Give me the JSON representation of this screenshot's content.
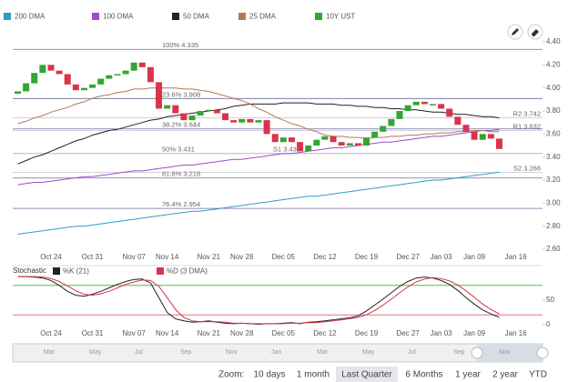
{
  "chart_data": [
    {
      "type": "candlestick",
      "categories": [
        null,
        null,
        null,
        null,
        "Oct 24",
        null,
        null,
        null,
        null,
        "Oct 31",
        null,
        null,
        null,
        null,
        "Nov 07",
        null,
        null,
        null,
        "Nov 14",
        null,
        null,
        null,
        null,
        "Nov 21",
        null,
        null,
        null,
        "Nov 28",
        null,
        null,
        null,
        null,
        "Dec 05",
        null,
        null,
        null,
        null,
        "Dec 12",
        null,
        null,
        null,
        null,
        "Dec 19",
        null,
        null,
        null,
        null,
        "Dec 27",
        null,
        null,
        null,
        "Jan 03",
        null,
        null,
        null,
        "Jan 09",
        null,
        null,
        null,
        null,
        "Jan 16"
      ],
      "candles": {
        "name": "10Y UST",
        "color": "#33a532",
        "down_color": "#d9344a",
        "open": [
          3.95,
          3.97,
          4.04,
          4.13,
          4.2,
          4.15,
          4.12,
          4.03,
          3.98,
          4.0,
          4.03,
          4.08,
          4.11,
          4.12,
          4.15,
          4.22,
          4.18,
          4.05,
          3.82,
          3.85,
          3.78,
          3.72,
          3.76,
          3.8,
          3.81,
          3.78,
          3.72,
          3.7,
          3.73,
          3.7,
          3.72,
          3.6,
          3.53,
          3.57,
          3.53,
          3.45,
          3.5,
          3.55,
          3.58,
          3.53,
          3.5,
          3.52,
          3.5,
          3.57,
          3.62,
          3.67,
          3.73,
          3.8,
          3.85,
          3.88,
          3.86,
          3.86,
          3.82,
          3.75,
          3.68,
          3.62,
          3.55,
          3.6,
          3.56,
          null,
          null
        ],
        "close": [
          3.97,
          4.04,
          4.13,
          4.2,
          4.15,
          4.12,
          4.03,
          3.98,
          4.0,
          4.03,
          4.08,
          4.11,
          4.12,
          4.15,
          4.22,
          4.18,
          4.05,
          3.82,
          3.85,
          3.78,
          3.72,
          3.76,
          3.8,
          3.81,
          3.78,
          3.72,
          3.7,
          3.73,
          3.7,
          3.72,
          3.6,
          3.53,
          3.57,
          3.53,
          3.45,
          3.5,
          3.55,
          3.58,
          3.53,
          3.5,
          3.52,
          3.5,
          3.57,
          3.62,
          3.67,
          3.73,
          3.8,
          3.85,
          3.88,
          3.86,
          3.86,
          3.82,
          3.75,
          3.68,
          3.62,
          3.55,
          3.6,
          3.56,
          3.47,
          null,
          null
        ]
      },
      "series": [
        {
          "name": "200 DMA",
          "color": "#2e9bc9",
          "values": [
            2.73,
            2.74,
            2.75,
            2.76,
            2.77,
            2.78,
            2.79,
            2.8,
            2.8,
            2.81,
            2.82,
            2.83,
            2.84,
            2.85,
            2.86,
            2.87,
            2.88,
            2.89,
            2.9,
            2.91,
            2.92,
            2.93,
            2.93,
            2.94,
            2.95,
            2.96,
            2.97,
            2.98,
            2.99,
            3.0,
            3.01,
            3.02,
            3.03,
            3.04,
            3.05,
            3.06,
            3.06,
            3.07,
            3.08,
            3.09,
            3.1,
            3.11,
            3.12,
            3.13,
            3.14,
            3.15,
            3.16,
            3.17,
            3.18,
            3.19,
            3.2,
            3.2,
            3.21,
            3.22,
            3.23,
            3.24,
            3.25,
            3.26,
            3.27,
            null,
            null
          ]
        },
        {
          "name": "100 DMA",
          "color": "#9b4dca",
          "values": [
            3.16,
            3.17,
            3.18,
            3.18,
            3.19,
            3.2,
            3.21,
            3.22,
            3.23,
            3.23,
            3.24,
            3.25,
            3.26,
            3.27,
            3.28,
            3.28,
            3.29,
            3.3,
            3.31,
            3.32,
            3.33,
            3.33,
            3.34,
            3.35,
            3.36,
            3.37,
            3.38,
            3.38,
            3.39,
            3.4,
            3.41,
            3.42,
            3.43,
            3.43,
            3.44,
            3.45,
            3.46,
            3.47,
            3.48,
            3.48,
            3.49,
            3.5,
            3.51,
            3.52,
            3.53,
            3.53,
            3.54,
            3.55,
            3.56,
            3.57,
            3.58,
            3.58,
            3.59,
            3.6,
            3.61,
            3.62,
            3.63,
            3.63,
            3.64,
            null,
            null
          ]
        },
        {
          "name": "50 DMA",
          "color": "#222222",
          "values": [
            3.34,
            3.37,
            3.4,
            3.42,
            3.45,
            3.48,
            3.51,
            3.54,
            3.56,
            3.59,
            3.61,
            3.63,
            3.64,
            3.66,
            3.68,
            3.7,
            3.72,
            3.73,
            3.75,
            3.76,
            3.77,
            3.78,
            3.79,
            3.8,
            3.81,
            3.82,
            3.84,
            3.85,
            3.86,
            3.86,
            3.86,
            3.86,
            3.87,
            3.87,
            3.87,
            3.87,
            3.86,
            3.86,
            3.86,
            3.85,
            3.85,
            3.84,
            3.84,
            3.83,
            3.83,
            3.82,
            3.82,
            3.81,
            3.81,
            3.8,
            3.79,
            3.79,
            3.78,
            3.77,
            3.77,
            3.76,
            3.75,
            3.75,
            3.74,
            null,
            null
          ]
        },
        {
          "name": "25 DMA",
          "color": "#b07a5a",
          "values": [
            3.69,
            3.71,
            3.74,
            3.76,
            3.79,
            3.81,
            3.83,
            3.86,
            3.88,
            3.91,
            3.93,
            3.94,
            3.96,
            3.97,
            3.99,
            3.99,
            4.0,
            4.0,
            4.0,
            4.0,
            3.99,
            3.99,
            3.98,
            3.97,
            3.95,
            3.93,
            3.91,
            3.89,
            3.86,
            3.82,
            3.79,
            3.75,
            3.72,
            3.69,
            3.67,
            3.64,
            3.62,
            3.59,
            3.58,
            3.58,
            3.57,
            3.57,
            3.56,
            3.57,
            3.57,
            3.58,
            3.58,
            3.59,
            3.59,
            3.6,
            3.6,
            3.61,
            3.61,
            3.62,
            3.62,
            3.63,
            3.63,
            3.62,
            3.62,
            null,
            null
          ]
        }
      ],
      "levels": [
        {
          "label": "100% 4.335",
          "value": 4.335
        },
        {
          "label": "23.6% 3.908",
          "value": 3.908
        },
        {
          "label": "38.2% 3.644",
          "value": 3.644
        },
        {
          "label": "50% 3.431",
          "value": 3.431
        },
        {
          "label": "61.8% 3.218",
          "value": 3.218
        },
        {
          "label": "76.4% 2.954",
          "value": 2.954
        }
      ],
      "level_color": "#6e6e9e",
      "pivots": [
        {
          "label": "R2 3.742",
          "value": 3.742
        },
        {
          "label": "R1 3.632",
          "value": 3.632
        },
        {
          "label": "S1 3.431",
          "value": 3.431
        },
        {
          "label": "S2 3.266",
          "value": 3.266
        }
      ],
      "ylim": [
        2.6,
        4.4
      ],
      "yticks": [
        {
          "value": 2.6,
          "label": "2.60"
        },
        {
          "value": 2.8,
          "label": "2.80"
        },
        {
          "value": 3.0,
          "label": "3.00"
        },
        {
          "value": 3.2,
          "label": "3.20"
        },
        {
          "value": 3.4,
          "label": "3.40"
        },
        {
          "value": 3.6,
          "label": "3.60"
        },
        {
          "value": 3.8,
          "label": "3.80"
        },
        {
          "value": 4.0,
          "label": "4.00"
        },
        {
          "value": 4.2,
          "label": "4.20"
        },
        {
          "value": 4.4,
          "label": "4.40"
        }
      ],
      "grid": false
    },
    {
      "type": "line",
      "title": "Stochastic",
      "series": [
        {
          "name": "%K (21)",
          "color": "#222222",
          "values": [
            98,
            98,
            97,
            95,
            90,
            80,
            68,
            60,
            58,
            62,
            68,
            75,
            82,
            88,
            92,
            93,
            85,
            55,
            25,
            12,
            8,
            5,
            6,
            8,
            5,
            3,
            2,
            3,
            2,
            1,
            2,
            2,
            3,
            4,
            2,
            5,
            6,
            8,
            10,
            12,
            14,
            18,
            28,
            40,
            52,
            65,
            78,
            88,
            95,
            97,
            95,
            90,
            82,
            70,
            55,
            42,
            30,
            22,
            15,
            null,
            null
          ]
        },
        {
          "name": "%D (3 DMA)",
          "color": "#d9344a",
          "values": [
            98,
            98,
            98,
            97,
            94,
            88,
            79,
            69,
            62,
            60,
            63,
            68,
            75,
            82,
            87,
            91,
            90,
            78,
            55,
            31,
            15,
            8,
            6,
            6,
            6,
            5,
            3,
            3,
            2,
            2,
            2,
            2,
            2,
            3,
            3,
            4,
            4,
            6,
            8,
            10,
            12,
            15,
            20,
            29,
            40,
            52,
            65,
            77,
            87,
            93,
            96,
            94,
            89,
            81,
            69,
            56,
            42,
            31,
            22,
            null,
            null
          ]
        }
      ],
      "bands": [
        {
          "value": 80,
          "color": "#5cb85c"
        },
        {
          "value": 20,
          "color": "#e0708a"
        }
      ],
      "ylim": [
        0,
        100
      ],
      "yticks": [
        0,
        50
      ]
    }
  ],
  "navigator": {
    "labels": [
      "Mar",
      "May",
      "Jul",
      "Sep",
      "Nov",
      "Jan",
      "Mar",
      "May",
      "Jul",
      "Sep",
      "Nov"
    ]
  },
  "zoom": {
    "label": "Zoom:",
    "buttons": [
      "10 days",
      "1 month",
      "Last Quarter",
      "6 Months",
      "1 year",
      "2 year",
      "YTD"
    ],
    "selected": 2
  }
}
